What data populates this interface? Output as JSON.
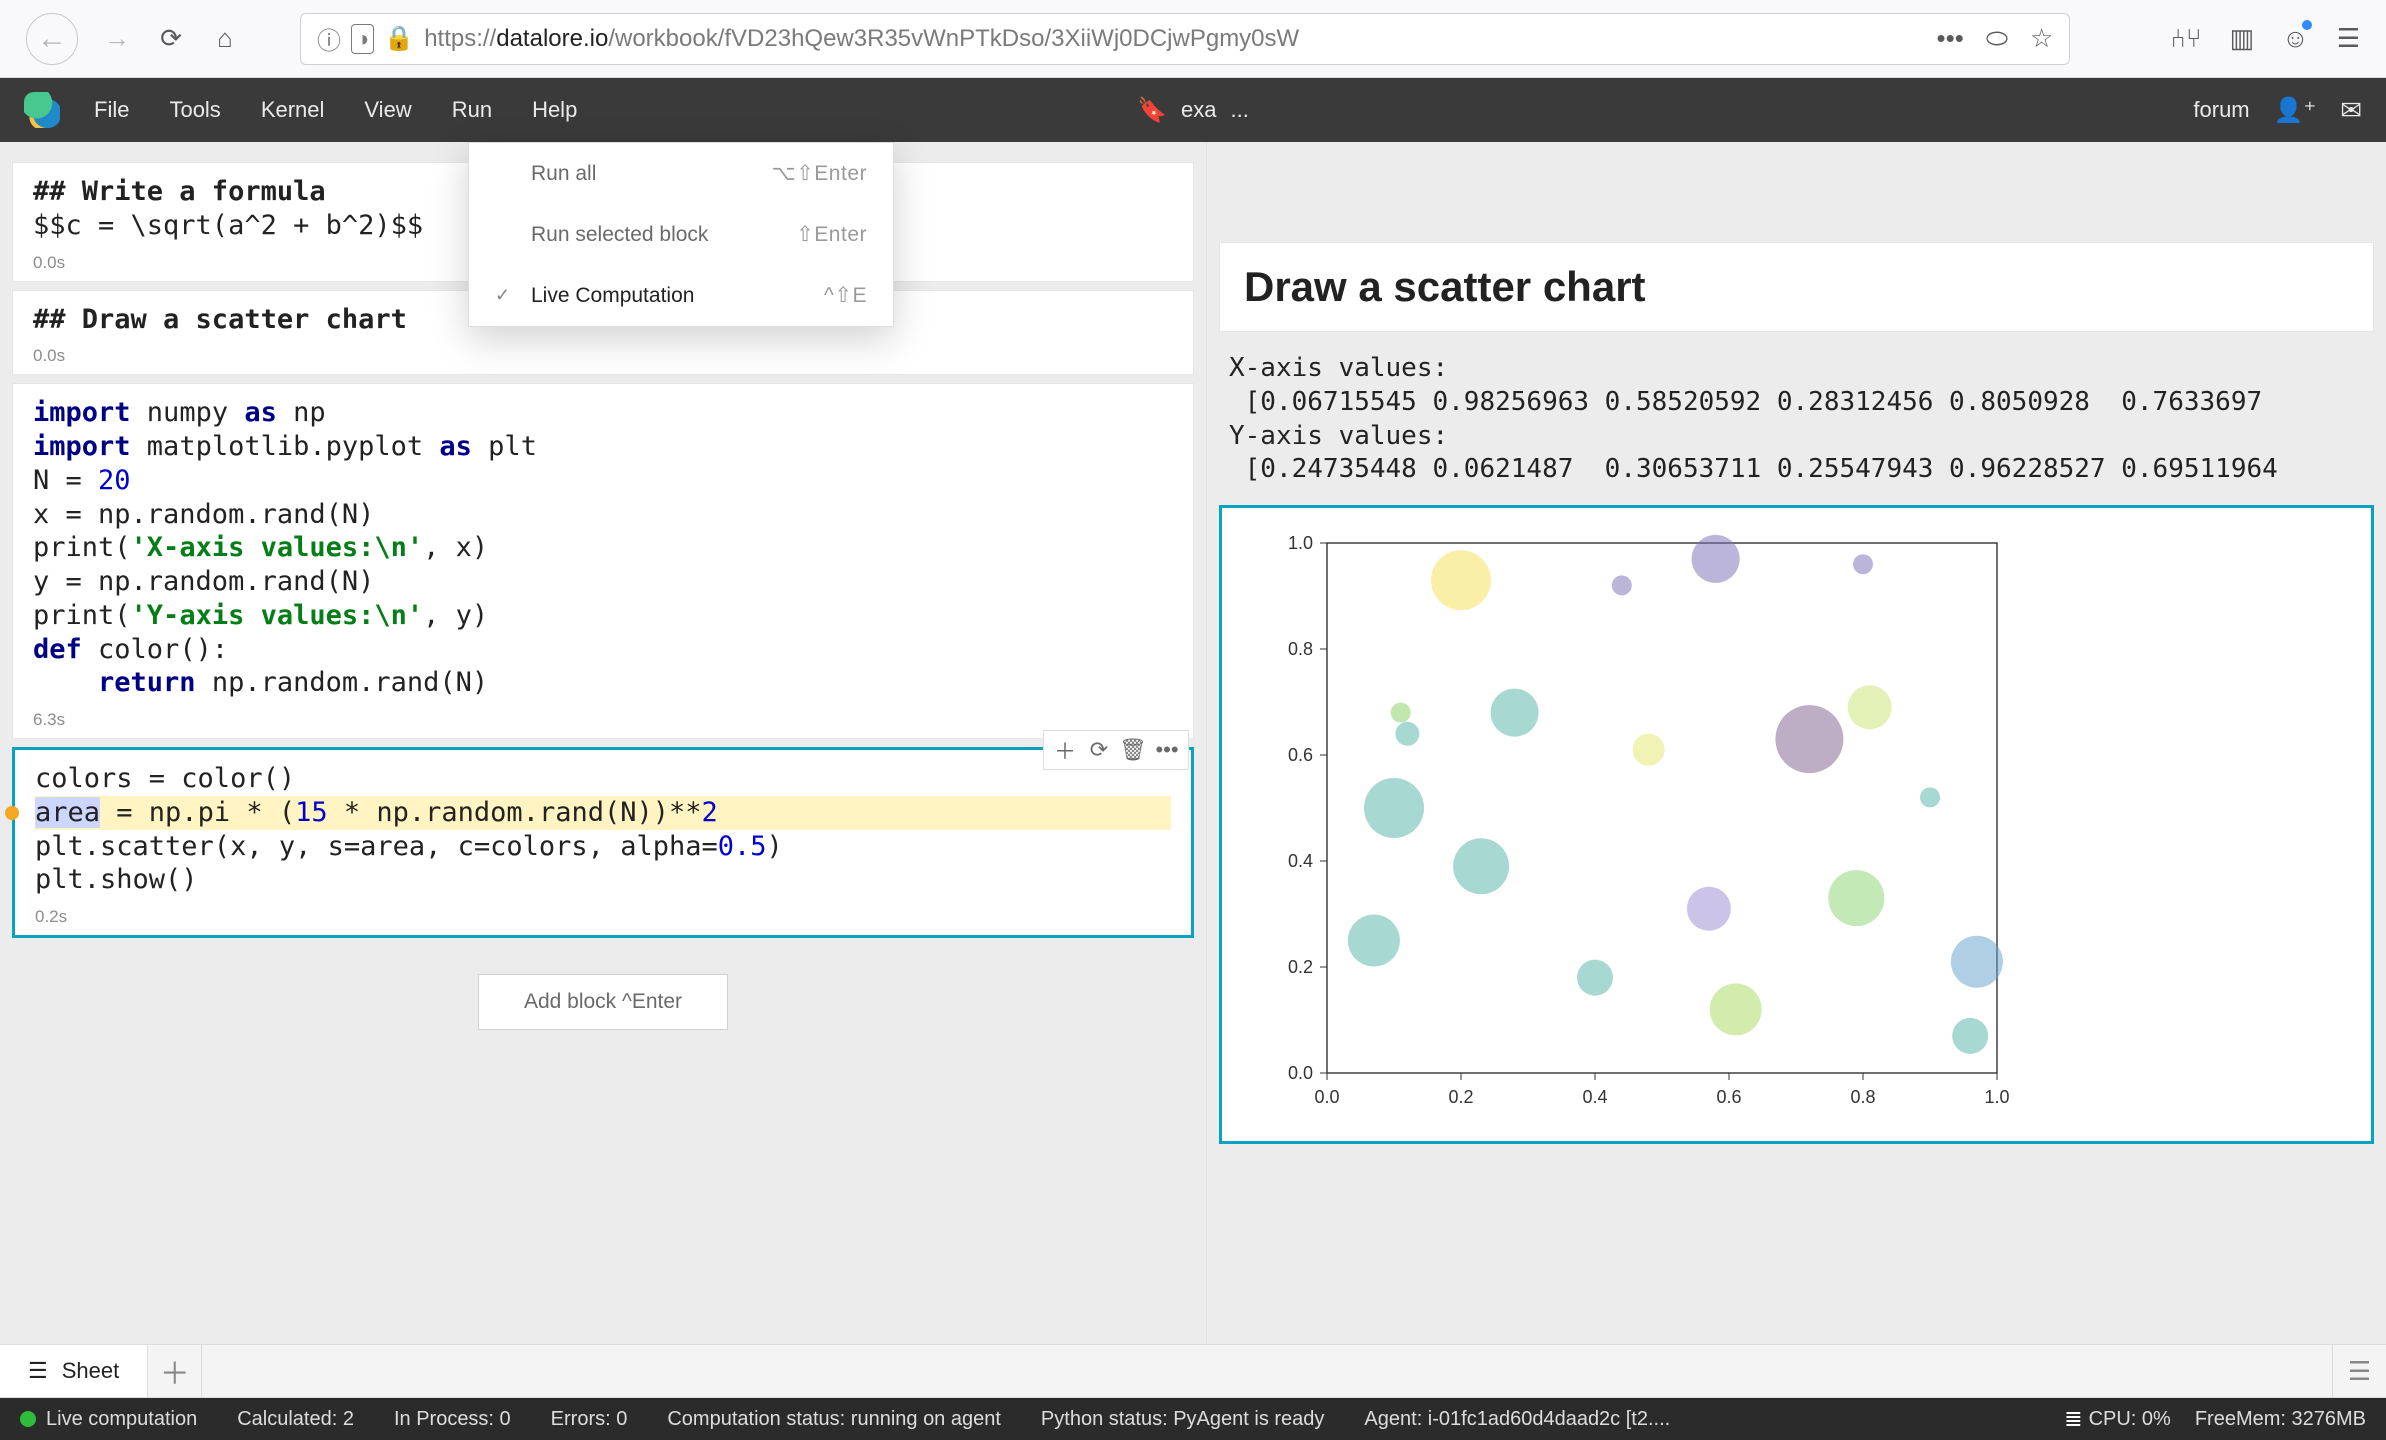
{
  "browser": {
    "url_host": "datalore.io",
    "url_path": "/workbook/fVD23hQew3R35vWnPTkDso/3XiiWj0DCjwPgmy0sW"
  },
  "menu": {
    "file": "File",
    "tools": "Tools",
    "kernel": "Kernel",
    "view": "View",
    "run": "Run",
    "help": "Help"
  },
  "tab_label": "exa",
  "app_right": {
    "forum": "forum"
  },
  "run_menu": {
    "run_all": {
      "label": "Run all",
      "shortcut": "⌥⇧Enter"
    },
    "run_selected": {
      "label": "Run selected block",
      "shortcut": "⇧Enter"
    },
    "live": {
      "label": "Live Computation",
      "shortcut": "^⇧E"
    }
  },
  "cells": {
    "formula_heading": "## Write a formula",
    "formula_body": "$$c = \\sqrt(a^2 + b^2)$$",
    "formula_time": "0.0s",
    "scatter_heading_md": "## Draw a scatter chart",
    "scatter_heading_time": "0.0s",
    "code1_time": "6.3s",
    "code2_time": "0.2s",
    "add_block": "Add block ^Enter",
    "code1": {
      "l1_a": "import",
      "l1_b": " numpy ",
      "l1_c": "as",
      "l1_d": " np",
      "l2_a": "import",
      "l2_b": " matplotlib.pyplot ",
      "l2_c": "as",
      "l2_d": " plt",
      "l3": "",
      "l4_a": "N = ",
      "l4_b": "20",
      "l5": "x = np.random.rand(N)",
      "l6_a": "print(",
      "l6_b": "'X-axis values:\\n'",
      "l6_c": ", x)",
      "l7": "y = np.random.rand(N)",
      "l8_a": "print(",
      "l8_b": "'Y-axis values:\\n'",
      "l8_c": ", y)",
      "l9_a": "def",
      "l9_b": " color():",
      "l10_a": "    ",
      "l10_b": "return",
      "l10_c": " np.random.rand(N)"
    },
    "code2": {
      "l1": "colors = color()",
      "l2_sel": "area",
      "l2_a": " = np.pi * (",
      "l2_b": "15",
      "l2_c": " * np.random.rand(N))**",
      "l2_d": "2",
      "l3_a": "plt.scatter(x, y, s=area, c=colors, alpha=",
      "l3_b": "0.5",
      "l3_c": ")",
      "l4": "plt.show()"
    }
  },
  "output": {
    "title": "Draw a scatter chart",
    "xlabel": "X-axis values:",
    "xvals": " [0.06715545 0.98256963 0.58520592 0.28312456 0.8050928  0.7633697",
    "ylabel": "Y-axis values:",
    "yvals": " [0.24735448 0.0621487  0.30653711 0.25547943 0.96228527 0.69511964"
  },
  "chart": {
    "type": "scatter",
    "xlim": [
      0.0,
      1.0
    ],
    "ylim": [
      0.0,
      1.0
    ],
    "xtick_step": 0.2,
    "ytick_step": 0.2,
    "tick_labels_x": [
      "0.0",
      "0.2",
      "0.4",
      "0.6",
      "0.8",
      "1.0"
    ],
    "tick_labels_y": [
      "0.0",
      "0.2",
      "0.4",
      "0.6",
      "0.8",
      "1.0"
    ],
    "background_color": "#ffffff",
    "border_color": "#333333",
    "tick_color": "#333333",
    "label_fontsize": 18,
    "alpha": 0.5,
    "points": [
      {
        "x": 0.07,
        "y": 0.25,
        "r": 26,
        "c": "#4fb2a5"
      },
      {
        "x": 0.1,
        "y": 0.5,
        "r": 30,
        "c": "#4fb2a5"
      },
      {
        "x": 0.12,
        "y": 0.64,
        "r": 12,
        "c": "#4fb2a5"
      },
      {
        "x": 0.11,
        "y": 0.68,
        "r": 10,
        "c": "#86cf5e"
      },
      {
        "x": 0.2,
        "y": 0.93,
        "r": 30,
        "c": "#f4df4f"
      },
      {
        "x": 0.23,
        "y": 0.39,
        "r": 28,
        "c": "#4fb2a5"
      },
      {
        "x": 0.28,
        "y": 0.68,
        "r": 24,
        "c": "#4fb2a5"
      },
      {
        "x": 0.4,
        "y": 0.18,
        "r": 18,
        "c": "#4fb2a5"
      },
      {
        "x": 0.44,
        "y": 0.92,
        "r": 10,
        "c": "#7a6bb6"
      },
      {
        "x": 0.48,
        "y": 0.61,
        "r": 16,
        "c": "#e3e86a"
      },
      {
        "x": 0.57,
        "y": 0.31,
        "r": 22,
        "c": "#9a89d2"
      },
      {
        "x": 0.58,
        "y": 0.97,
        "r": 24,
        "c": "#7a6bb6"
      },
      {
        "x": 0.61,
        "y": 0.12,
        "r": 26,
        "c": "#a5d95a"
      },
      {
        "x": 0.72,
        "y": 0.63,
        "r": 34,
        "c": "#7c5d8c"
      },
      {
        "x": 0.79,
        "y": 0.33,
        "r": 28,
        "c": "#86d36e"
      },
      {
        "x": 0.81,
        "y": 0.69,
        "r": 22,
        "c": "#c9e46d"
      },
      {
        "x": 0.8,
        "y": 0.96,
        "r": 10,
        "c": "#7a6bb6"
      },
      {
        "x": 0.9,
        "y": 0.52,
        "r": 10,
        "c": "#4fb2a5"
      },
      {
        "x": 0.96,
        "y": 0.07,
        "r": 18,
        "c": "#4fb2a5"
      },
      {
        "x": 0.97,
        "y": 0.21,
        "r": 26,
        "c": "#5f9fc9"
      }
    ]
  },
  "sheets": {
    "label": "Sheet"
  },
  "status": {
    "live": "Live computation",
    "calculated": "Calculated: 2",
    "inprocess": "In Process: 0",
    "errors": "Errors: 0",
    "comp": "Computation status: running on agent",
    "python": "Python status: PyAgent is ready",
    "agent": "Agent: i-01fc1ad60d4daad2c [t2....",
    "cpu": "CPU: 0%",
    "mem": "FreeMem: 3276MB"
  }
}
